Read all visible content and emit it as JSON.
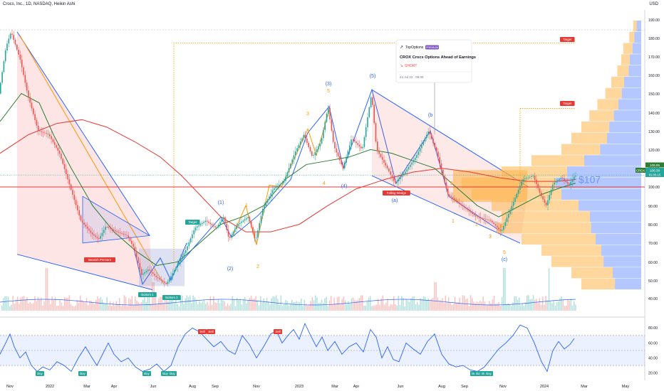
{
  "header": {
    "title": "Crocs, Inc., 1D, NASDAQ, Heikin Ashi",
    "currency": "USD"
  },
  "colors": {
    "up": "#26a69a",
    "down": "#ef5350",
    "red_ma": "#e53935",
    "green_ma": "#2e7d32",
    "blue": "#2962ff",
    "orange": "#ff9800",
    "rsi": "#2962ff",
    "vp_orange": "#ffb74d",
    "vp_blue": "#2962ff"
  },
  "chart_data": [
    {
      "type": "candlestick",
      "title": "Crocs, Inc., 1D, NASDAQ, Heikin Ashi",
      "x_ticks": [
        "Nov",
        "2022",
        "Mar",
        "Apr",
        "Jun",
        "Aug",
        "Sep",
        "Nov",
        "2023",
        "Mar",
        "Apr",
        "Jun",
        "Aug",
        "Sep",
        "Nov",
        "2024",
        "Mar",
        "May"
      ],
      "y_ticks": [
        40,
        50,
        60,
        70,
        80,
        90,
        100,
        110,
        120,
        130,
        140,
        150,
        160,
        170,
        180,
        190
      ],
      "ylim": [
        38,
        197
      ],
      "last_price": 106.38,
      "last_price_label": "106.38",
      "last_price_time": "01:05:15",
      "high_label": "108.85",
      "symbol_tag": "CROX",
      "horizontal_line": 100,
      "price_label_big": "$107",
      "price_path": [
        [
          0,
          150
        ],
        [
          10,
          175
        ],
        [
          17,
          183
        ],
        [
          30,
          168
        ],
        [
          40,
          150
        ],
        [
          55,
          130
        ],
        [
          70,
          128
        ],
        [
          85,
          118
        ],
        [
          100,
          100
        ],
        [
          115,
          82
        ],
        [
          130,
          75
        ],
        [
          140,
          72
        ],
        [
          150,
          79
        ],
        [
          165,
          76
        ],
        [
          180,
          74
        ],
        [
          190,
          67
        ],
        [
          200,
          53
        ],
        [
          210,
          56
        ],
        [
          220,
          52
        ],
        [
          235,
          48
        ],
        [
          250,
          58
        ],
        [
          262,
          66
        ],
        [
          275,
          78
        ],
        [
          290,
          82
        ],
        [
          305,
          78
        ],
        [
          315,
          84
        ],
        [
          323,
          72
        ],
        [
          335,
          80
        ],
        [
          350,
          84
        ],
        [
          360,
          71
        ],
        [
          370,
          88
        ],
        [
          385,
          99
        ],
        [
          400,
          103
        ],
        [
          415,
          118
        ],
        [
          428,
          128
        ],
        [
          440,
          116
        ],
        [
          452,
          124
        ],
        [
          462,
          143
        ],
        [
          470,
          122
        ],
        [
          483,
          110
        ],
        [
          495,
          126
        ],
        [
          510,
          120
        ],
        [
          523,
          150
        ],
        [
          530,
          120
        ],
        [
          545,
          110
        ],
        [
          556,
          102
        ],
        [
          570,
          108
        ],
        [
          585,
          116
        ],
        [
          603,
          130
        ],
        [
          615,
          118
        ],
        [
          630,
          96
        ],
        [
          650,
          90
        ],
        [
          670,
          84
        ],
        [
          690,
          82
        ],
        [
          705,
          76
        ],
        [
          720,
          90
        ],
        [
          735,
          104
        ],
        [
          750,
          106
        ],
        [
          760,
          96
        ],
        [
          768,
          90
        ],
        [
          778,
          102
        ],
        [
          790,
          105
        ],
        [
          800,
          101
        ],
        [
          808,
          106
        ]
      ],
      "red_ma_path": [
        [
          0,
          118
        ],
        [
          40,
          128
        ],
        [
          80,
          134
        ],
        [
          115,
          136
        ],
        [
          150,
          132
        ],
        [
          190,
          124
        ],
        [
          225,
          116
        ],
        [
          255,
          106
        ],
        [
          280,
          96
        ],
        [
          310,
          84
        ],
        [
          345,
          76
        ],
        [
          380,
          76
        ],
        [
          420,
          80
        ],
        [
          460,
          90
        ],
        [
          500,
          99
        ],
        [
          540,
          104
        ],
        [
          580,
          108
        ],
        [
          620,
          110
        ],
        [
          660,
          108
        ],
        [
          700,
          105
        ],
        [
          740,
          103
        ],
        [
          780,
          103
        ],
        [
          808,
          104
        ]
      ],
      "green_ma_path": [
        [
          0,
          135
        ],
        [
          30,
          150
        ],
        [
          55,
          145
        ],
        [
          75,
          128
        ],
        [
          100,
          110
        ],
        [
          130,
          90
        ],
        [
          160,
          76
        ],
        [
          190,
          66
        ],
        [
          220,
          58
        ],
        [
          250,
          60
        ],
        [
          280,
          70
        ],
        [
          310,
          80
        ],
        [
          340,
          84
        ],
        [
          370,
          90
        ],
        [
          400,
          104
        ],
        [
          430,
          112
        ],
        [
          460,
          114
        ],
        [
          490,
          116
        ],
        [
          520,
          120
        ],
        [
          550,
          118
        ],
        [
          580,
          114
        ],
        [
          610,
          110
        ],
        [
          640,
          100
        ],
        [
          670,
          90
        ],
        [
          700,
          84
        ],
        [
          730,
          90
        ],
        [
          760,
          96
        ],
        [
          790,
          100
        ],
        [
          808,
          102
        ]
      ],
      "annotations": {
        "targets": [
          "Target",
          "Target",
          "Target"
        ],
        "pattern_labels": [
          "Bearish Pennant",
          "Bottom 1",
          "Bottom 2",
          "Falling Wedge"
        ],
        "wave_labels": [
          "(1)",
          "(2)",
          "(3)",
          "(4)",
          "(5)",
          "(a)",
          "(b",
          "(c)"
        ],
        "orange_wave_labels": [
          "1",
          "2",
          "3",
          "4",
          "5",
          "1",
          "2",
          "3",
          "4",
          "5",
          "3"
        ]
      },
      "idea_card": {
        "author": "TopOptions",
        "badge": "PREMIUM",
        "headline": "CROX Crocs Options Ahead of Earnings",
        "signal": "SHORT",
        "date": "24 Jul 23 · 09:05"
      },
      "volume_profile_note": "Volume profile on right edge"
    },
    {
      "type": "line",
      "title": "",
      "ylim": [
        12,
        88
      ],
      "y_ticks": [
        20,
        40,
        60,
        80
      ],
      "band": [
        30,
        70
      ],
      "buy_labels": [
        "Buy",
        "Buy",
        "Buy",
        "Buy",
        "Buy",
        "Buy",
        "Buy",
        "Buy",
        "Buy"
      ],
      "sell_labels": [
        "Sell",
        "Sell",
        "Sell"
      ],
      "values": [
        [
          0,
          45
        ],
        [
          8,
          60
        ],
        [
          14,
          72
        ],
        [
          20,
          55
        ],
        [
          28,
          40
        ],
        [
          36,
          48
        ],
        [
          44,
          30
        ],
        [
          52,
          22
        ],
        [
          60,
          28
        ],
        [
          70,
          24
        ],
        [
          80,
          35
        ],
        [
          90,
          30
        ],
        [
          100,
          22
        ],
        [
          110,
          40
        ],
        [
          120,
          55
        ],
        [
          128,
          42
        ],
        [
          136,
          30
        ],
        [
          144,
          45
        ],
        [
          152,
          60
        ],
        [
          160,
          45
        ],
        [
          170,
          35
        ],
        [
          180,
          40
        ],
        [
          190,
          28
        ],
        [
          200,
          22
        ],
        [
          210,
          25
        ],
        [
          220,
          32
        ],
        [
          230,
          22
        ],
        [
          240,
          30
        ],
        [
          250,
          55
        ],
        [
          260,
          72
        ],
        [
          270,
          80
        ],
        [
          280,
          75
        ],
        [
          290,
          65
        ],
        [
          300,
          55
        ],
        [
          310,
          62
        ],
        [
          320,
          50
        ],
        [
          330,
          45
        ],
        [
          340,
          70
        ],
        [
          350,
          58
        ],
        [
          360,
          40
        ],
        [
          370,
          55
        ],
        [
          380,
          72
        ],
        [
          388,
          76
        ],
        [
          396,
          60
        ],
        [
          404,
          70
        ],
        [
          412,
          78
        ],
        [
          420,
          65
        ],
        [
          428,
          86
        ],
        [
          436,
          70
        ],
        [
          444,
          55
        ],
        [
          452,
          68
        ],
        [
          460,
          50
        ],
        [
          470,
          62
        ],
        [
          480,
          45
        ],
        [
          490,
          55
        ],
        [
          500,
          60
        ],
        [
          510,
          48
        ],
        [
          520,
          78
        ],
        [
          528,
          68
        ],
        [
          536,
          40
        ],
        [
          544,
          55
        ],
        [
          552,
          38
        ],
        [
          560,
          35
        ],
        [
          570,
          60
        ],
        [
          580,
          52
        ],
        [
          590,
          45
        ],
        [
          600,
          62
        ],
        [
          610,
          72
        ],
        [
          620,
          45
        ],
        [
          630,
          32
        ],
        [
          640,
          28
        ],
        [
          650,
          30
        ],
        [
          660,
          24
        ],
        [
          670,
          22
        ],
        [
          680,
          28
        ],
        [
          690,
          40
        ],
        [
          700,
          52
        ],
        [
          710,
          60
        ],
        [
          720,
          70
        ],
        [
          730,
          84
        ],
        [
          740,
          80
        ],
        [
          750,
          60
        ],
        [
          760,
          35
        ],
        [
          768,
          22
        ],
        [
          776,
          50
        ],
        [
          784,
          62
        ],
        [
          792,
          52
        ],
        [
          800,
          58
        ],
        [
          806,
          66
        ]
      ]
    }
  ]
}
